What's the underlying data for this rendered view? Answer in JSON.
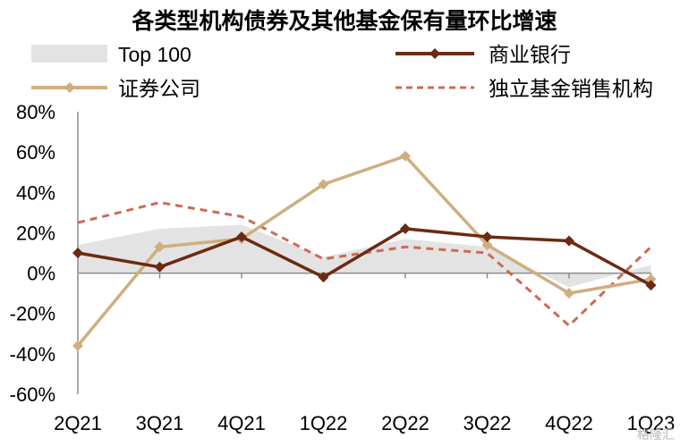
{
  "chart_data": {
    "type": "line",
    "title": "各类型机构债券及其他基金保有量环比增速",
    "categories": [
      "2Q21",
      "3Q21",
      "4Q21",
      "1Q22",
      "2Q22",
      "3Q22",
      "4Q22",
      "1Q23"
    ],
    "ylim": [
      -60,
      80
    ],
    "yticks": [
      "80%",
      "60%",
      "40%",
      "20%",
      "0%",
      "-20%",
      "-40%",
      "-60%"
    ],
    "y_unit": "%",
    "grid": false,
    "legend_position": "top",
    "series": [
      {
        "name": "Top 100",
        "style": "area",
        "color": "#e3e3e3",
        "values": [
          14,
          22,
          24,
          8,
          17,
          13,
          -7,
          4
        ]
      },
      {
        "name": "商业银行",
        "style": "line-diamond",
        "color": "#6b2a12",
        "values": [
          10,
          3,
          18,
          -2,
          22,
          18,
          16,
          -6
        ]
      },
      {
        "name": "证券公司",
        "style": "line-diamond",
        "color": "#cfae7f",
        "values": [
          -36,
          13,
          17,
          44,
          58,
          14,
          -10,
          -3
        ]
      },
      {
        "name": "独立基金销售机构",
        "style": "dashed",
        "color": "#cd6a54",
        "values": [
          25,
          35,
          28,
          7,
          13,
          10,
          -26,
          13
        ]
      }
    ]
  },
  "watermark": "格隆汇"
}
